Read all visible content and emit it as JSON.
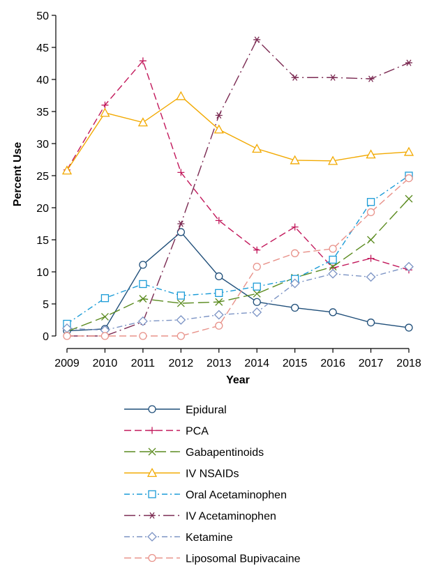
{
  "chart_data": {
    "type": "line",
    "xlabel": "Year",
    "ylabel": "Percent Use",
    "ylim": [
      0,
      50
    ],
    "yticks": [
      0,
      5,
      10,
      15,
      20,
      25,
      30,
      35,
      40,
      45,
      50
    ],
    "x": [
      2009,
      2010,
      2011,
      2012,
      2013,
      2014,
      2015,
      2016,
      2017,
      2018
    ],
    "grid": false,
    "legend_position": "bottom",
    "series": [
      {
        "name": "Epidural",
        "color": "#1f4e79",
        "marker": "circle",
        "dash": "solid",
        "values": [
          0.8,
          1.1,
          11.1,
          16.2,
          9.3,
          5.3,
          4.4,
          3.7,
          2.1,
          1.3
        ]
      },
      {
        "name": "PCA",
        "color": "#c2185b",
        "marker": "plus",
        "dash": "dash",
        "values": [
          25.9,
          36.0,
          42.9,
          25.5,
          18.0,
          13.4,
          17.0,
          10.6,
          12.1,
          10.3
        ]
      },
      {
        "name": "Gabapentinoids",
        "color": "#5a8a1e",
        "marker": "x",
        "dash": "longdash",
        "values": [
          0.7,
          3.0,
          5.8,
          5.1,
          5.3,
          6.6,
          9.1,
          10.8,
          15.0,
          21.4
        ]
      },
      {
        "name": "IV NSAIDs",
        "color": "#f2a900",
        "marker": "triangle",
        "dash": "solid",
        "values": [
          25.8,
          34.8,
          33.3,
          37.4,
          32.2,
          29.2,
          27.4,
          27.3,
          28.3,
          28.7
        ]
      },
      {
        "name": "Oral Acetaminophen",
        "color": "#1a9bd7",
        "marker": "square",
        "dash": "dashdot",
        "values": [
          1.9,
          5.9,
          8.1,
          6.3,
          6.7,
          7.7,
          8.9,
          11.9,
          20.9,
          25.0
        ]
      },
      {
        "name": "IV Acetaminophen",
        "color": "#7b2a52",
        "marker": "asterisk",
        "dash": "longdashdot",
        "values": [
          0.0,
          0.0,
          2.2,
          17.5,
          34.4,
          46.2,
          40.3,
          40.3,
          40.1,
          42.6
        ]
      },
      {
        "name": "Ketamine",
        "color": "#7b93c4",
        "marker": "diamond",
        "dash": "dashdot",
        "values": [
          1.2,
          0.9,
          2.3,
          2.5,
          3.3,
          3.7,
          8.2,
          9.7,
          9.2,
          10.8
        ]
      },
      {
        "name": "Liposomal Bupivacaine",
        "color": "#e8928a",
        "marker": "circle",
        "dash": "dash",
        "values": [
          0.0,
          0.0,
          0.0,
          0.0,
          1.6,
          10.8,
          12.9,
          13.6,
          19.3,
          24.6
        ]
      }
    ]
  }
}
